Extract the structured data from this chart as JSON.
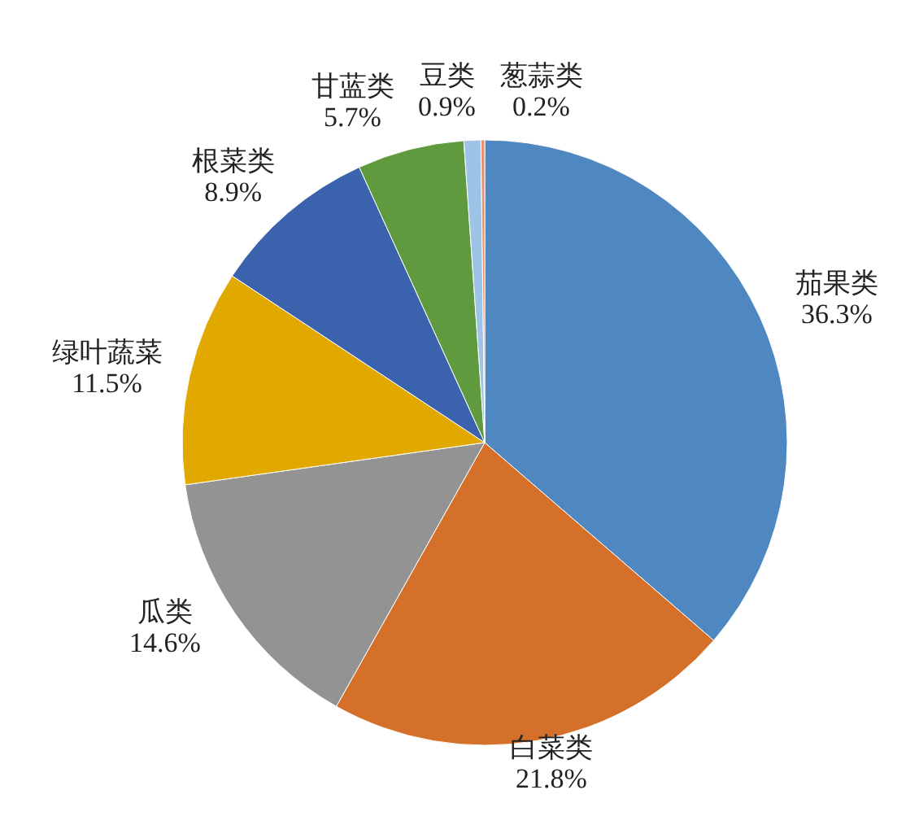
{
  "chart_data": {
    "type": "pie",
    "categories": [
      "茄果类",
      "白菜类",
      "瓜类",
      "绿叶蔬菜",
      "根菜类",
      "甘蓝类",
      "豆类",
      "葱蒜类"
    ],
    "values": [
      36.3,
      21.8,
      14.6,
      11.5,
      8.9,
      5.7,
      0.9,
      0.2
    ],
    "value_labels": [
      "36.3%",
      "21.8%",
      "14.6%",
      "11.5%",
      "8.9%",
      "5.7%",
      "0.9%",
      "0.2%"
    ],
    "colors": [
      "#4f87c0",
      "#d5702b",
      "#939393",
      "#e1a900",
      "#3b62ad",
      "#5f9b3e",
      "#9dc3e6",
      "#e9906c"
    ]
  }
}
